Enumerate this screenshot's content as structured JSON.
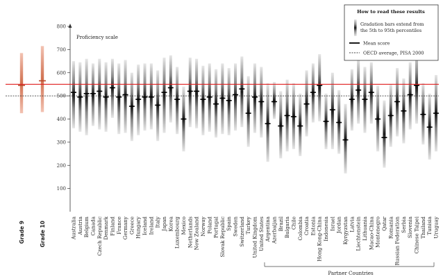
{
  "chart_data": {
    "type": "range-bar",
    "ylabel": "Proficiency scale",
    "ylim": [
      0,
      800
    ],
    "yticks": [
      100,
      200,
      300,
      400,
      500,
      600,
      700,
      800
    ],
    "tick_labels": [
      "100",
      "200",
      "300",
      "400",
      "500",
      "600",
      "700",
      "800"
    ],
    "reference_lines": {
      "red_line": 550,
      "oecd_average": 500
    },
    "grades": [
      {
        "label": "Grade 9",
        "mean": 545,
        "low": 425,
        "high": 685
      },
      {
        "label": "Grade 10",
        "mean": 565,
        "low": 430,
        "high": 715
      }
    ],
    "countries": [
      {
        "name": "Australia",
        "mean": 515,
        "low": 360,
        "high": 650
      },
      {
        "name": "Austria",
        "mean": 495,
        "low": 345,
        "high": 645
      },
      {
        "name": "Belgium",
        "mean": 510,
        "low": 330,
        "high": 660
      },
      {
        "name": "Canada",
        "mean": 510,
        "low": 370,
        "high": 640
      },
      {
        "name": "Czech Republic",
        "mean": 520,
        "low": 355,
        "high": 660
      },
      {
        "name": "Denmark",
        "mean": 495,
        "low": 345,
        "high": 645
      },
      {
        "name": "Finland",
        "mean": 535,
        "low": 405,
        "high": 660
      },
      {
        "name": "France",
        "mean": 495,
        "low": 335,
        "high": 640
      },
      {
        "name": "Germany",
        "mean": 505,
        "low": 340,
        "high": 655
      },
      {
        "name": "Greece",
        "mean": 455,
        "low": 305,
        "high": 600
      },
      {
        "name": "Hungary",
        "mean": 485,
        "low": 330,
        "high": 635
      },
      {
        "name": "Iceland",
        "mean": 495,
        "low": 350,
        "high": 640
      },
      {
        "name": "Ireland",
        "mean": 495,
        "low": 355,
        "high": 640
      },
      {
        "name": "Italy",
        "mean": 460,
        "low": 305,
        "high": 610
      },
      {
        "name": "Japan",
        "mean": 515,
        "low": 340,
        "high": 665
      },
      {
        "name": "Korea",
        "mean": 535,
        "low": 385,
        "high": 675
      },
      {
        "name": "Luxembourg",
        "mean": 485,
        "low": 335,
        "high": 625
      },
      {
        "name": "Mexico",
        "mean": 400,
        "low": 260,
        "high": 540
      },
      {
        "name": "Netherlands",
        "mean": 520,
        "low": 365,
        "high": 665
      },
      {
        "name": "New Zealand",
        "mean": 520,
        "low": 360,
        "high": 660
      },
      {
        "name": "Norway",
        "mean": 485,
        "low": 330,
        "high": 630
      },
      {
        "name": "Poland",
        "mean": 495,
        "low": 345,
        "high": 640
      },
      {
        "name": "Portugal",
        "mean": 465,
        "low": 320,
        "high": 615
      },
      {
        "name": "Slovak Republic",
        "mean": 490,
        "low": 335,
        "high": 640
      },
      {
        "name": "Spain",
        "mean": 480,
        "low": 330,
        "high": 620
      },
      {
        "name": "Sweden",
        "mean": 505,
        "low": 350,
        "high": 640
      },
      {
        "name": "Switzerland",
        "mean": 530,
        "low": 365,
        "high": 670
      },
      {
        "name": "Turkey",
        "mean": 425,
        "low": 280,
        "high": 585
      },
      {
        "name": "United Kingdom",
        "mean": 495,
        "low": 340,
        "high": 640
      },
      {
        "name": "United States",
        "mean": 475,
        "low": 320,
        "high": 625
      },
      {
        "name": "Argentina",
        "mean": 380,
        "low": 215,
        "high": 555
      },
      {
        "name": "Azerbaijan",
        "mean": 475,
        "low": 400,
        "high": 560
      },
      {
        "name": "Brazil",
        "mean": 370,
        "low": 230,
        "high": 520
      },
      {
        "name": "Bulgaria",
        "mean": 415,
        "low": 260,
        "high": 570
      },
      {
        "name": "Chile",
        "mean": 410,
        "low": 270,
        "high": 555
      },
      {
        "name": "Colombia",
        "mean": 370,
        "low": 240,
        "high": 510
      },
      {
        "name": "Croatia",
        "mean": 465,
        "low": 325,
        "high": 610
      },
      {
        "name": "Estonia",
        "mean": 515,
        "low": 385,
        "high": 640
      },
      {
        "name": "Hong Kong-China",
        "mean": 545,
        "low": 390,
        "high": 680
      },
      {
        "name": "Indonesia",
        "mean": 390,
        "low": 270,
        "high": 510
      },
      {
        "name": "Israel",
        "mean": 440,
        "low": 270,
        "high": 600
      },
      {
        "name": "Jordan",
        "mean": 385,
        "low": 250,
        "high": 525
      },
      {
        "name": "Kyrgyzstan",
        "mean": 310,
        "low": 165,
        "high": 465
      },
      {
        "name": "Latvia",
        "mean": 485,
        "low": 350,
        "high": 615
      },
      {
        "name": "Liechtenstein",
        "mean": 525,
        "low": 380,
        "high": 660
      },
      {
        "name": "Lithuania",
        "mean": 485,
        "low": 340,
        "high": 625
      },
      {
        "name": "Macao-China",
        "mean": 515,
        "low": 380,
        "high": 645
      },
      {
        "name": "Montenegro",
        "mean": 400,
        "low": 260,
        "high": 545
      },
      {
        "name": "Qatar",
        "mean": 320,
        "low": 190,
        "high": 480
      },
      {
        "name": "Romania",
        "mean": 415,
        "low": 280,
        "high": 550
      },
      {
        "name": "Russian Federation",
        "mean": 475,
        "low": 325,
        "high": 620
      },
      {
        "name": "Serbia",
        "mean": 435,
        "low": 295,
        "high": 575
      },
      {
        "name": "Slovenia",
        "mean": 505,
        "low": 355,
        "high": 645
      },
      {
        "name": "Chinese Taipei",
        "mean": 545,
        "low": 380,
        "high": 695
      },
      {
        "name": "Thailand",
        "mean": 420,
        "low": 290,
        "high": 555
      },
      {
        "name": "Tunisia",
        "mean": 365,
        "low": 225,
        "high": 510
      },
      {
        "name": "Uruguay",
        "mean": 425,
        "low": 260,
        "high": 590
      }
    ],
    "partner_countries_label": "Partner Countries",
    "legend": {
      "title": "How to read these results",
      "items": [
        {
          "text": "Gradation bars extend from the 5th to 95th percentiles",
          "icon": "gradation-bar"
        },
        {
          "text": "Mean score",
          "icon": "solid-line"
        },
        {
          "text": "OECD average, PISA 2000",
          "icon": "dashed-line"
        }
      ]
    }
  }
}
